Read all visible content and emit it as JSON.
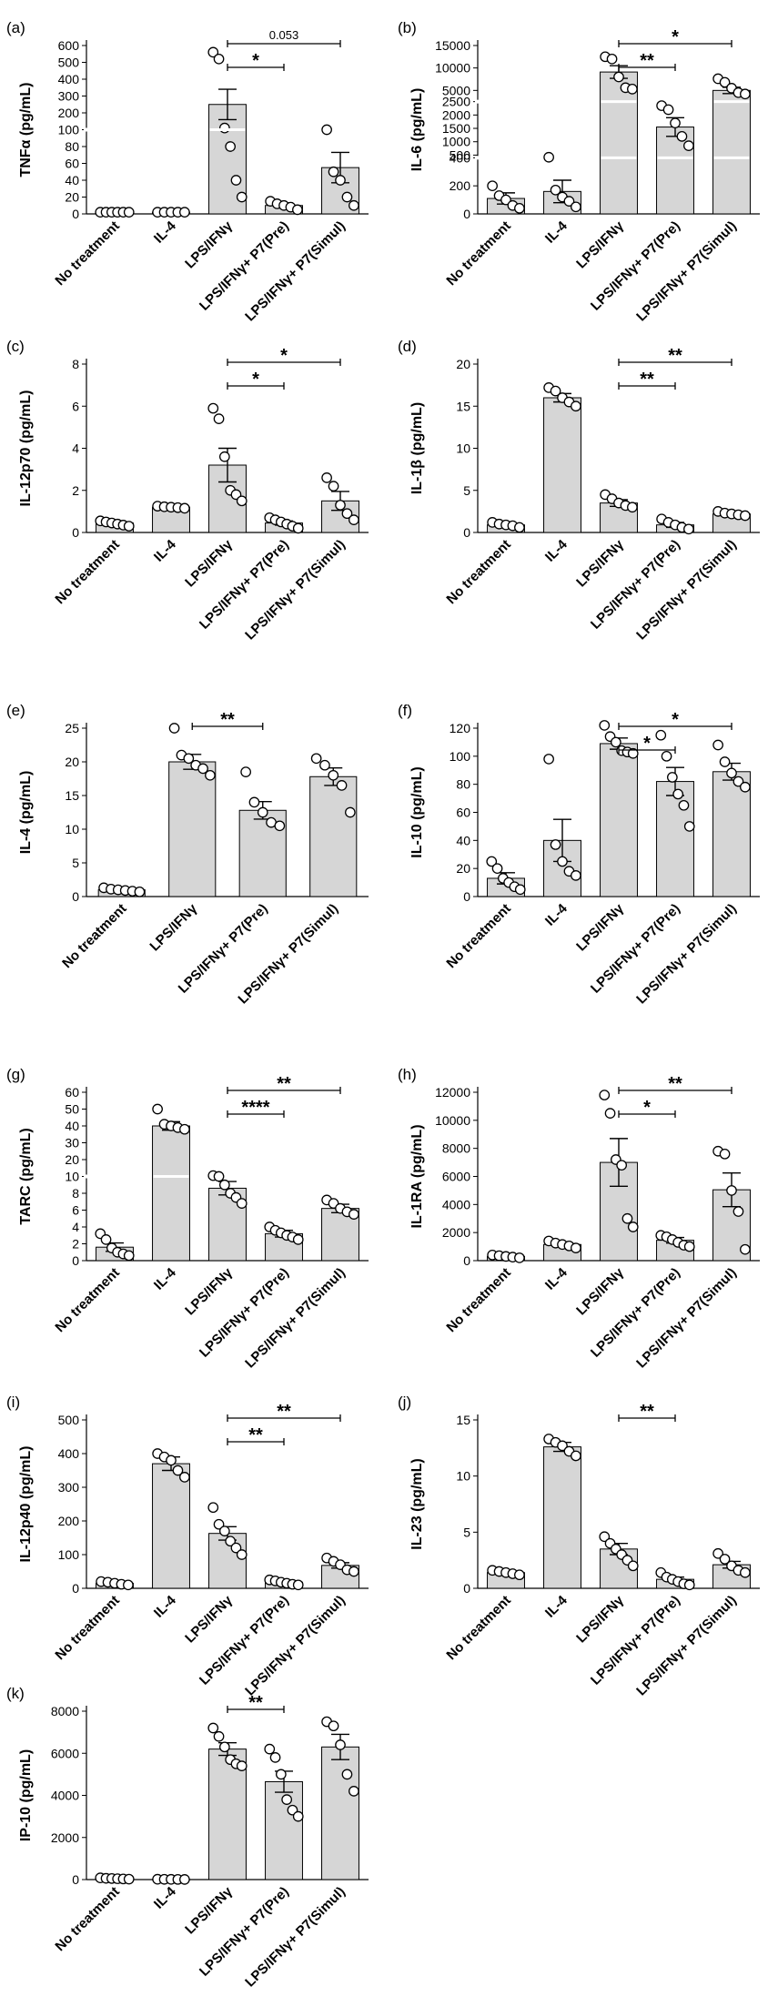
{
  "colors": {
    "bar_fill": "#d6d6d6",
    "ink": "#000000",
    "point_fill": "#ffffff"
  },
  "chart_data": [
    {
      "panel": "(a)",
      "type": "bar",
      "ylabel": "TNFα (pg/mL)",
      "categories": [
        "No treatment",
        "IL-4",
        "LPS/IFNγ",
        "LPS/IFNγ+ P7(Pre)",
        "LPS/IFNγ+ P7(Simul)"
      ],
      "values": [
        2,
        2,
        250,
        10,
        55
      ],
      "errors": [
        0.5,
        0.5,
        90,
        3,
        18
      ],
      "points": [
        [
          2,
          2,
          2,
          2,
          2,
          2
        ],
        [
          2,
          2,
          2,
          2,
          2
        ],
        [
          560,
          520,
          110,
          80,
          40,
          20
        ],
        [
          15,
          12,
          10,
          8,
          5
        ],
        [
          100,
          50,
          40,
          20,
          10
        ]
      ],
      "scale": "broken",
      "segments": [
        {
          "from": 0,
          "to": 100
        },
        {
          "from": 100,
          "to": 600
        }
      ],
      "yticks": [
        0,
        20,
        40,
        60,
        80,
        100,
        200,
        300,
        400,
        500,
        600
      ],
      "significance": [
        {
          "from": 2,
          "to": 3,
          "label": "*"
        },
        {
          "from": 2,
          "to": 4,
          "label": "0.053"
        }
      ]
    },
    {
      "panel": "(b)",
      "type": "bar",
      "ylabel": "IL-6 (pg/mL)",
      "categories": [
        "No treatment",
        "IL-4",
        "LPS/IFNγ",
        "LPS/IFNγ+ P7(Pre)",
        "LPS/IFNγ+ P7(Simul)"
      ],
      "values": [
        110,
        160,
        9100,
        1550,
        5000
      ],
      "errors": [
        40,
        80,
        1400,
        350,
        700
      ],
      "points": [
        [
          200,
          130,
          100,
          60,
          40
        ],
        [
          420,
          170,
          120,
          90,
          50
        ],
        [
          12500,
          12000,
          8000,
          5600,
          5300
        ],
        [
          2350,
          2200,
          1700,
          1200,
          850
        ],
        [
          7600,
          6800,
          5500,
          4500,
          4200
        ]
      ],
      "scale": "broken",
      "segments": [
        {
          "from": 0,
          "to": 400
        },
        {
          "from": 400,
          "to": 2500
        },
        {
          "from": 2500,
          "to": 15000
        }
      ],
      "yticks": [
        0,
        200,
        400,
        500,
        1000,
        1500,
        2000,
        2500,
        5000,
        10000,
        15000
      ],
      "significance": [
        {
          "from": 2,
          "to": 3,
          "label": "**"
        },
        {
          "from": 2,
          "to": 4,
          "label": "*"
        }
      ]
    },
    {
      "panel": "(c)",
      "type": "bar",
      "ylabel": "IL-12p70 (pg/mL)",
      "categories": [
        "No treatment",
        "IL-4",
        "LPS/IFNγ",
        "LPS/IFNγ+ P7(Pre)",
        "LPS/IFNγ+ P7(Simul)"
      ],
      "values": [
        0.45,
        1.2,
        3.2,
        0.45,
        1.5
      ],
      "errors": [
        0.08,
        0.05,
        0.8,
        0.1,
        0.45
      ],
      "points": [
        [
          0.55,
          0.5,
          0.45,
          0.4,
          0.35,
          0.3
        ],
        [
          1.25,
          1.22,
          1.2,
          1.18,
          1.15
        ],
        [
          5.9,
          5.4,
          3.6,
          2.0,
          1.8,
          1.5
        ],
        [
          0.7,
          0.6,
          0.5,
          0.4,
          0.3,
          0.2
        ],
        [
          2.6,
          2.2,
          1.3,
          0.9,
          0.6
        ]
      ],
      "ylim": [
        0,
        8
      ],
      "yticks": [
        0,
        2,
        4,
        6,
        8
      ],
      "significance": [
        {
          "from": 2,
          "to": 3,
          "label": "*"
        },
        {
          "from": 2,
          "to": 4,
          "label": "*"
        }
      ]
    },
    {
      "panel": "(d)",
      "type": "bar",
      "ylabel": "IL-1β (pg/mL)",
      "categories": [
        "No treatment",
        "IL-4",
        "LPS/IFNγ",
        "LPS/IFNγ+ P7(Pre)",
        "LPS/IFNγ+ P7(Simul)"
      ],
      "values": [
        0.9,
        16,
        3.5,
        0.9,
        2.2
      ],
      "errors": [
        0.2,
        0.5,
        0.4,
        0.3,
        0.2
      ],
      "points": [
        [
          1.2,
          1.0,
          0.9,
          0.8,
          0.6
        ],
        [
          17.2,
          16.8,
          16,
          15.5,
          15
        ],
        [
          4.5,
          4.0,
          3.5,
          3.2,
          3.0
        ],
        [
          1.6,
          1.2,
          0.9,
          0.6,
          0.4
        ],
        [
          2.5,
          2.3,
          2.2,
          2.1,
          2.0
        ]
      ],
      "ylim": [
        0,
        20
      ],
      "yticks": [
        0,
        5,
        10,
        15,
        20
      ],
      "significance": [
        {
          "from": 2,
          "to": 3,
          "label": "**"
        },
        {
          "from": 2,
          "to": 4,
          "label": "**"
        }
      ]
    },
    {
      "panel": "(e)",
      "type": "bar",
      "ylabel": "IL-4 (pg/mL)",
      "categories": [
        "No treatment",
        "LPS/IFNγ",
        "LPS/IFNγ+ P7(Pre)",
        "LPS/IFNγ+ P7(Simul)"
      ],
      "values": [
        1,
        20,
        12.8,
        17.8
      ],
      "errors": [
        0.2,
        1.1,
        1.3,
        1.3
      ],
      "points": [
        [
          1.3,
          1.1,
          1.0,
          0.9,
          0.8,
          0.7
        ],
        [
          25,
          21,
          20.5,
          19.5,
          19,
          18
        ],
        [
          18.5,
          14,
          12.5,
          11,
          10.5
        ],
        [
          20.5,
          19.5,
          18,
          16.5,
          12.5
        ]
      ],
      "ylim": [
        0,
        25
      ],
      "yticks": [
        0,
        5,
        10,
        15,
        20,
        25
      ],
      "significance": [
        {
          "from": 1,
          "to": 2,
          "label": "**"
        }
      ]
    },
    {
      "panel": "(f)",
      "type": "bar",
      "ylabel": "IL-10 (pg/mL)",
      "categories": [
        "No treatment",
        "IL-4",
        "LPS/IFNγ",
        "LPS/IFNγ+ P7(Pre)",
        "LPS/IFNγ+ P7(Simul)"
      ],
      "values": [
        13,
        40,
        109,
        82,
        89
      ],
      "errors": [
        4,
        15,
        4,
        10,
        6
      ],
      "points": [
        [
          25,
          20,
          13,
          10,
          7,
          5
        ],
        [
          98,
          37,
          25,
          18,
          15
        ],
        [
          122,
          114,
          110,
          104,
          103,
          102
        ],
        [
          115,
          100,
          85,
          73,
          65,
          50
        ],
        [
          108,
          96,
          88,
          82,
          78
        ]
      ],
      "ylim": [
        0,
        120
      ],
      "yticks": [
        0,
        20,
        40,
        60,
        80,
        100,
        120
      ],
      "significance": [
        {
          "from": 2,
          "to": 3,
          "label": "*"
        },
        {
          "from": 2,
          "to": 4,
          "label": "*"
        }
      ]
    },
    {
      "panel": "(g)",
      "type": "bar",
      "ylabel": "TARC (pg/mL)",
      "categories": [
        "No treatment",
        "IL-4",
        "LPS/IFNγ",
        "LPS/IFNγ+ P7(Pre)",
        "LPS/IFNγ+ P7(Simul)"
      ],
      "values": [
        1.6,
        40,
        8.6,
        3.2,
        6.2
      ],
      "errors": [
        0.5,
        2.5,
        0.8,
        0.4,
        0.5
      ],
      "points": [
        [
          3.2,
          2.5,
          1.5,
          1.0,
          0.8,
          0.6
        ],
        [
          50,
          41,
          40,
          39,
          38
        ],
        [
          10.5,
          10,
          9,
          8,
          7.5,
          6.8
        ],
        [
          4.0,
          3.6,
          3.3,
          3.0,
          2.8,
          2.5
        ],
        [
          7.2,
          6.8,
          6.2,
          5.8,
          5.5
        ]
      ],
      "scale": "broken",
      "segments": [
        {
          "from": 0,
          "to": 10
        },
        {
          "from": 10,
          "to": 60
        }
      ],
      "yticks": [
        0,
        2,
        4,
        6,
        8,
        10,
        20,
        30,
        40,
        50,
        60
      ],
      "significance": [
        {
          "from": 2,
          "to": 3,
          "label": "****"
        },
        {
          "from": 2,
          "to": 4,
          "label": "**"
        }
      ]
    },
    {
      "panel": "(h)",
      "type": "bar",
      "ylabel": "IL-1RA (pg/mL)",
      "categories": [
        "No treatment",
        "IL-4",
        "LPS/IFNγ",
        "LPS/IFNγ+ P7(Pre)",
        "LPS/IFNγ+ P7(Simul)"
      ],
      "values": [
        300,
        1150,
        7000,
        1450,
        5050
      ],
      "errors": [
        50,
        150,
        1700,
        200,
        1200
      ],
      "points": [
        [
          400,
          350,
          300,
          250,
          200
        ],
        [
          1400,
          1250,
          1150,
          1050,
          900
        ],
        [
          11800,
          10500,
          7200,
          6800,
          3000,
          2400
        ],
        [
          1800,
          1700,
          1500,
          1300,
          1100,
          1000
        ],
        [
          7800,
          7600,
          5000,
          3500,
          800
        ]
      ],
      "ylim": [
        0,
        12000
      ],
      "yticks": [
        0,
        2000,
        4000,
        6000,
        8000,
        10000,
        12000
      ],
      "significance": [
        {
          "from": 2,
          "to": 3,
          "label": "*"
        },
        {
          "from": 2,
          "to": 4,
          "label": "**"
        }
      ]
    },
    {
      "panel": "(i)",
      "type": "bar",
      "ylabel": "IL-12p40 (pg/mL)",
      "categories": [
        "No treatment",
        "IL-4",
        "LPS/IFNγ",
        "LPS/IFNγ+ P7(Pre)",
        "LPS/IFNγ+ P7(Simul)"
      ],
      "values": [
        15,
        370,
        163,
        18,
        68
      ],
      "errors": [
        3,
        20,
        20,
        3,
        8
      ],
      "points": [
        [
          20,
          18,
          15,
          12,
          10
        ],
        [
          400,
          390,
          380,
          350,
          330
        ],
        [
          240,
          190,
          170,
          140,
          120,
          100
        ],
        [
          25,
          22,
          18,
          15,
          12,
          10
        ],
        [
          90,
          80,
          70,
          55,
          50
        ]
      ],
      "ylim": [
        0,
        500
      ],
      "yticks": [
        0,
        100,
        200,
        300,
        400,
        500
      ],
      "significance": [
        {
          "from": 2,
          "to": 3,
          "label": "**"
        },
        {
          "from": 2,
          "to": 4,
          "label": "**"
        }
      ]
    },
    {
      "panel": "(j)",
      "type": "bar",
      "ylabel": "IL-23 (pg/mL)",
      "categories": [
        "No treatment",
        "IL-4",
        "LPS/IFNγ",
        "LPS/IFNγ+ P7(Pre)",
        "LPS/IFNγ+ P7(Simul)"
      ],
      "values": [
        1.4,
        12.6,
        3.5,
        0.8,
        2.1
      ],
      "errors": [
        0.1,
        0.4,
        0.5,
        0.2,
        0.3
      ],
      "points": [
        [
          1.6,
          1.5,
          1.4,
          1.3,
          1.2
        ],
        [
          13.3,
          13,
          12.7,
          12.2,
          11.8
        ],
        [
          4.6,
          4.0,
          3.5,
          3.0,
          2.5,
          2.0
        ],
        [
          1.4,
          1.0,
          0.8,
          0.6,
          0.4,
          0.3
        ],
        [
          3.1,
          2.6,
          2.0,
          1.6,
          1.4
        ]
      ],
      "ylim": [
        0,
        15
      ],
      "yticks": [
        0,
        5,
        10,
        15
      ],
      "significance": [
        {
          "from": 2,
          "to": 3,
          "label": "**"
        }
      ]
    },
    {
      "panel": "(k)",
      "type": "bar",
      "ylabel": "IP-10 (pg/mL)",
      "categories": [
        "No treatment",
        "IL-4",
        "LPS/IFNγ",
        "LPS/IFNγ+ P7(Pre)",
        "LPS/IFNγ+ P7(Simul)"
      ],
      "values": [
        50,
        10,
        6200,
        4650,
        6300
      ],
      "errors": [
        10,
        3,
        300,
        500,
        600
      ],
      "points": [
        [
          80,
          60,
          50,
          40,
          30,
          20
        ],
        [
          15,
          12,
          10,
          8,
          5
        ],
        [
          7200,
          6800,
          6300,
          5700,
          5500,
          5400
        ],
        [
          6200,
          5800,
          5000,
          3800,
          3300,
          3000
        ],
        [
          7500,
          7300,
          6400,
          5000,
          4200
        ]
      ],
      "ylim": [
        0,
        8000
      ],
      "yticks": [
        0,
        2000,
        4000,
        6000,
        8000
      ],
      "significance": [
        {
          "from": 2,
          "to": 3,
          "label": "**"
        }
      ]
    }
  ]
}
